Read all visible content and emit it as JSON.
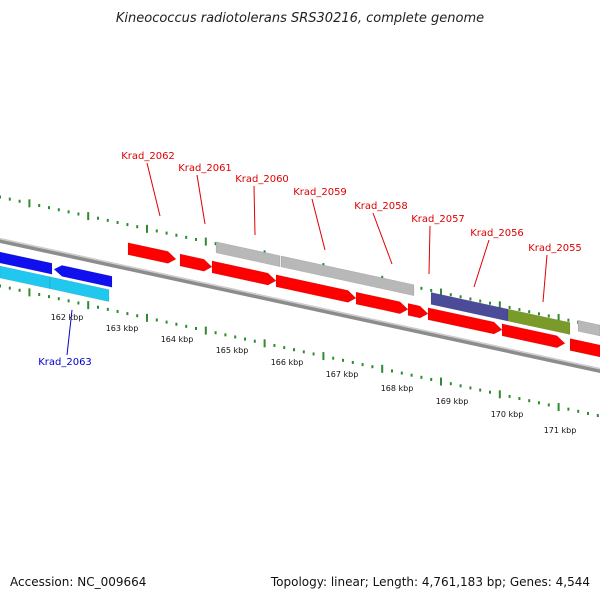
{
  "title": "Kineococcus radiotolerans SRS30216, complete genome",
  "footer": {
    "accession": "Accession: NC_009664",
    "summary": "Topology: linear; Length: 4,761,183 bp; Genes: 4,544"
  },
  "colors": {
    "forward_label": "#e00000",
    "reverse_label": "#0000cc",
    "tick": "#2e8b2e",
    "backbone": "#808080"
  },
  "kbp_ticks": [
    "162 kbp",
    "163 kbp",
    "164 kbp",
    "165 kbp",
    "166 kbp",
    "167 kbp",
    "168 kbp",
    "169 kbp",
    "170 kbp",
    "171 kbp"
  ],
  "forward_gene_labels": [
    "Krad_2062",
    "Krad_2061",
    "Krad_2060",
    "Krad_2059",
    "Krad_2058",
    "Krad_2057",
    "Krad_2056",
    "Krad_2055"
  ],
  "reverse_gene_labels": [
    "Krad_2063"
  ],
  "feature_colors": {
    "cds": "#ff0000",
    "gene": "#b8b8b8",
    "reverse_cds": "#1010ee",
    "reverse_gene": "#20c8f0",
    "misc_a": "#4b4b9a",
    "misc_b": "#7a9a2a"
  }
}
